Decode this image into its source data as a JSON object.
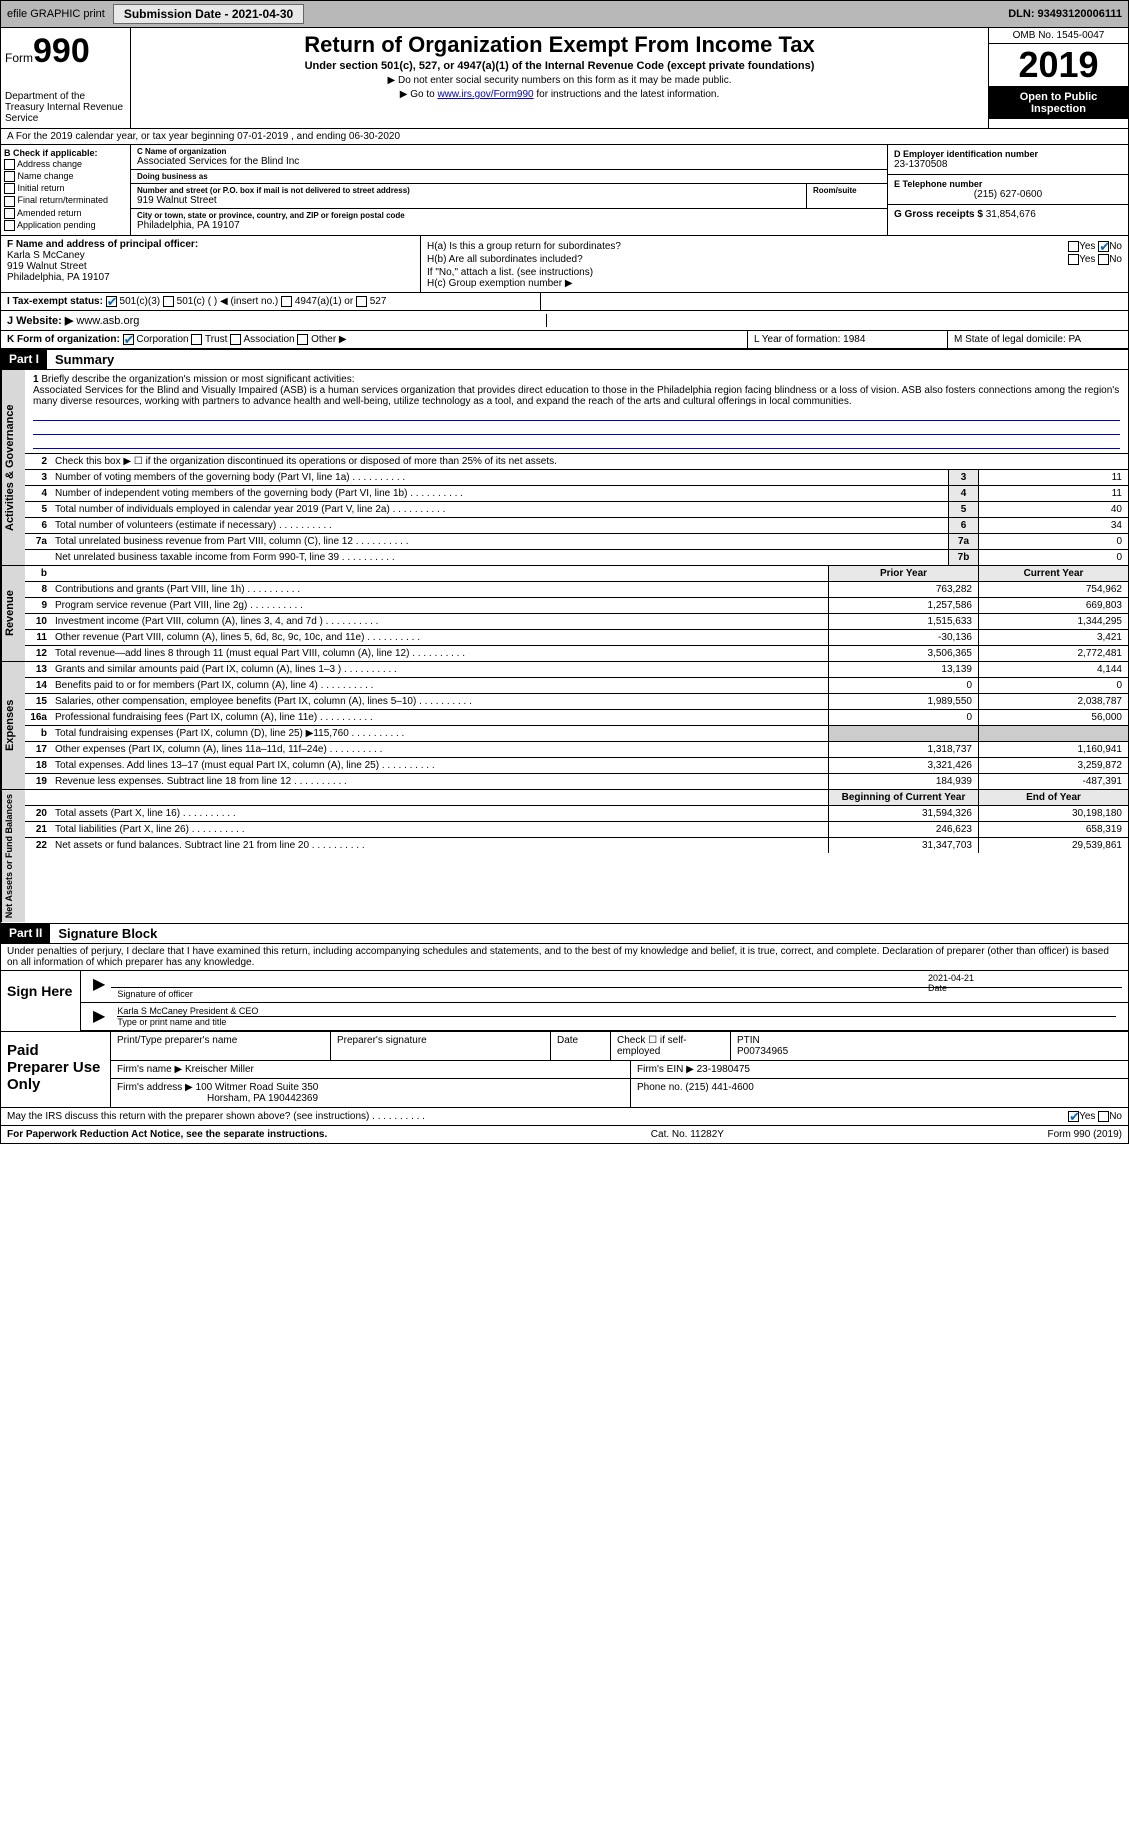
{
  "topbar": {
    "efile": "efile GRAPHIC print",
    "submission": "Submission Date - 2021-04-30",
    "dln": "DLN: 93493120006111"
  },
  "header": {
    "form_label": "Form",
    "form_num": "990",
    "dept": "Department of the Treasury Internal Revenue Service",
    "title": "Return of Organization Exempt From Income Tax",
    "sub": "Under section 501(c), 527, or 4947(a)(1) of the Internal Revenue Code (except private foundations)",
    "note1": "▶ Do not enter social security numbers on this form as it may be made public.",
    "note2_pre": "▶ Go to ",
    "note2_link": "www.irs.gov/Form990",
    "note2_post": " for instructions and the latest information.",
    "omb": "OMB No. 1545-0047",
    "year": "2019",
    "open": "Open to Public Inspection"
  },
  "row_a": "A For the 2019 calendar year, or tax year beginning 07-01-2019    , and ending 06-30-2020",
  "section_b": {
    "heading": "B Check if applicable:",
    "items": [
      "Address change",
      "Name change",
      "Initial return",
      "Final return/terminated",
      "Amended return",
      "Application pending"
    ]
  },
  "section_c": {
    "name_label": "C Name of organization",
    "name": "Associated Services for the Blind Inc",
    "dba_label": "Doing business as",
    "dba": "",
    "addr_label": "Number and street (or P.O. box if mail is not delivered to street address)",
    "addr": "919 Walnut Street",
    "room_label": "Room/suite",
    "city_label": "City or town, state or province, country, and ZIP or foreign postal code",
    "city": "Philadelphia, PA  19107"
  },
  "section_de": {
    "d_label": "D Employer identification number",
    "d": "23-1370508",
    "e_label": "E Telephone number",
    "e": "(215) 627-0600",
    "g_label": "G Gross receipts $",
    "g": "31,854,676"
  },
  "section_f": {
    "label": "F  Name and address of principal officer:",
    "name": "Karla S McCaney",
    "addr1": "919 Walnut Street",
    "addr2": "Philadelphia, PA  19107"
  },
  "section_h": {
    "ha": "H(a)  Is this a group return for subordinates?",
    "hb": "H(b)  Are all subordinates included?",
    "hb_note": "If \"No,\" attach a list. (see instructions)",
    "hc": "H(c)  Group exemption number ▶",
    "yes": "Yes",
    "no": "No"
  },
  "row_i": {
    "label": "I  Tax-exempt status:",
    "opt1": "501(c)(3)",
    "opt2": "501(c) (   ) ◀ (insert no.)",
    "opt3": "4947(a)(1) or",
    "opt4": "527"
  },
  "row_j": {
    "label": "J  Website: ▶",
    "val": "www.asb.org"
  },
  "row_k": {
    "label": "K Form of organization:",
    "corp": "Corporation",
    "trust": "Trust",
    "assoc": "Association",
    "other": "Other ▶",
    "l": "L Year of formation: 1984",
    "m": "M State of legal domicile: PA"
  },
  "part1": {
    "label": "Part I",
    "title": "Summary"
  },
  "summary": {
    "q1_label": "1",
    "q1": "Briefly describe the organization's mission or most significant activities:",
    "mission": "Associated Services for the Blind and Visually Impaired (ASB) is a human services organization that provides direct education to those in the Philadelphia region facing blindness or a loss of vision. ASB also fosters connections among the region's many diverse resources, working with partners to advance health and well-being, utilize technology as a tool, and expand the reach of the arts and cultural offerings in local communities.",
    "q2": "Check this box ▶ ☐  if the organization discontinued its operations or disposed of more than 25% of its net assets.",
    "lines_gov": [
      {
        "n": "3",
        "d": "Number of voting members of the governing body (Part VI, line 1a)",
        "b": "3",
        "v": "11"
      },
      {
        "n": "4",
        "d": "Number of independent voting members of the governing body (Part VI, line 1b)",
        "b": "4",
        "v": "11"
      },
      {
        "n": "5",
        "d": "Total number of individuals employed in calendar year 2019 (Part V, line 2a)",
        "b": "5",
        "v": "40"
      },
      {
        "n": "6",
        "d": "Total number of volunteers (estimate if necessary)",
        "b": "6",
        "v": "34"
      },
      {
        "n": "7a",
        "d": "Total unrelated business revenue from Part VIII, column (C), line 12",
        "b": "7a",
        "v": "0"
      },
      {
        "n": "",
        "d": "Net unrelated business taxable income from Form 990-T, line 39",
        "b": "7b",
        "v": "0"
      }
    ],
    "hdr_b": "b",
    "hdr_prior": "Prior Year",
    "hdr_current": "Current Year",
    "lines_rev": [
      {
        "n": "8",
        "d": "Contributions and grants (Part VIII, line 1h)",
        "p": "763,282",
        "c": "754,962"
      },
      {
        "n": "9",
        "d": "Program service revenue (Part VIII, line 2g)",
        "p": "1,257,586",
        "c": "669,803"
      },
      {
        "n": "10",
        "d": "Investment income (Part VIII, column (A), lines 3, 4, and 7d )",
        "p": "1,515,633",
        "c": "1,344,295"
      },
      {
        "n": "11",
        "d": "Other revenue (Part VIII, column (A), lines 5, 6d, 8c, 9c, 10c, and 11e)",
        "p": "-30,136",
        "c": "3,421"
      },
      {
        "n": "12",
        "d": "Total revenue—add lines 8 through 11 (must equal Part VIII, column (A), line 12)",
        "p": "3,506,365",
        "c": "2,772,481"
      }
    ],
    "lines_exp": [
      {
        "n": "13",
        "d": "Grants and similar amounts paid (Part IX, column (A), lines 1–3 )",
        "p": "13,139",
        "c": "4,144"
      },
      {
        "n": "14",
        "d": "Benefits paid to or for members (Part IX, column (A), line 4)",
        "p": "0",
        "c": "0"
      },
      {
        "n": "15",
        "d": "Salaries, other compensation, employee benefits (Part IX, column (A), lines 5–10)",
        "p": "1,989,550",
        "c": "2,038,787"
      },
      {
        "n": "16a",
        "d": "Professional fundraising fees (Part IX, column (A), line 11e)",
        "p": "0",
        "c": "56,000"
      },
      {
        "n": "b",
        "d": "Total fundraising expenses (Part IX, column (D), line 25) ▶115,760",
        "p": "",
        "c": ""
      },
      {
        "n": "17",
        "d": "Other expenses (Part IX, column (A), lines 11a–11d, 11f–24e)",
        "p": "1,318,737",
        "c": "1,160,941"
      },
      {
        "n": "18",
        "d": "Total expenses. Add lines 13–17 (must equal Part IX, column (A), line 25)",
        "p": "3,321,426",
        "c": "3,259,872"
      },
      {
        "n": "19",
        "d": "Revenue less expenses. Subtract line 18 from line 12",
        "p": "184,939",
        "c": "-487,391"
      }
    ],
    "hdr_begin": "Beginning of Current Year",
    "hdr_end": "End of Year",
    "lines_net": [
      {
        "n": "20",
        "d": "Total assets (Part X, line 16)",
        "p": "31,594,326",
        "c": "30,198,180"
      },
      {
        "n": "21",
        "d": "Total liabilities (Part X, line 26)",
        "p": "246,623",
        "c": "658,319"
      },
      {
        "n": "22",
        "d": "Net assets or fund balances. Subtract line 21 from line 20",
        "p": "31,347,703",
        "c": "29,539,861"
      }
    ],
    "vtab_gov": "Activities & Governance",
    "vtab_rev": "Revenue",
    "vtab_exp": "Expenses",
    "vtab_net": "Net Assets or Fund Balances"
  },
  "part2": {
    "label": "Part II",
    "title": "Signature Block",
    "intro": "Under penalties of perjury, I declare that I have examined this return, including accompanying schedules and statements, and to the best of my knowledge and belief, it is true, correct, and complete. Declaration of preparer (other than officer) is based on all information of which preparer has any knowledge.",
    "sign_here": "Sign Here",
    "sig_officer": "Signature of officer",
    "sig_date": "Date",
    "sig_date_val": "2021-04-21",
    "sig_name": "Karla S McCaney  President & CEO",
    "sig_name_label": "Type or print name and title",
    "paid": "Paid Preparer Use Only",
    "prep_name_label": "Print/Type preparer's name",
    "prep_sig_label": "Preparer's signature",
    "prep_date_label": "Date",
    "prep_check": "Check ☐ if self-employed",
    "ptin_label": "PTIN",
    "ptin": "P00734965",
    "firm_name_label": "Firm's name    ▶",
    "firm_name": "Kreischer Miller",
    "firm_ein_label": "Firm's EIN ▶",
    "firm_ein": "23-1980475",
    "firm_addr_label": "Firm's address ▶",
    "firm_addr1": "100 Witmer Road Suite 350",
    "firm_addr2": "Horsham, PA  190442369",
    "firm_phone_label": "Phone no.",
    "firm_phone": "(215) 441-4600",
    "discuss": "May the IRS discuss this return with the preparer shown above? (see instructions)",
    "yes": "Yes",
    "no": "No"
  },
  "footer": {
    "left": "For Paperwork Reduction Act Notice, see the separate instructions.",
    "mid": "Cat. No. 11282Y",
    "right": "Form 990 (2019)"
  }
}
